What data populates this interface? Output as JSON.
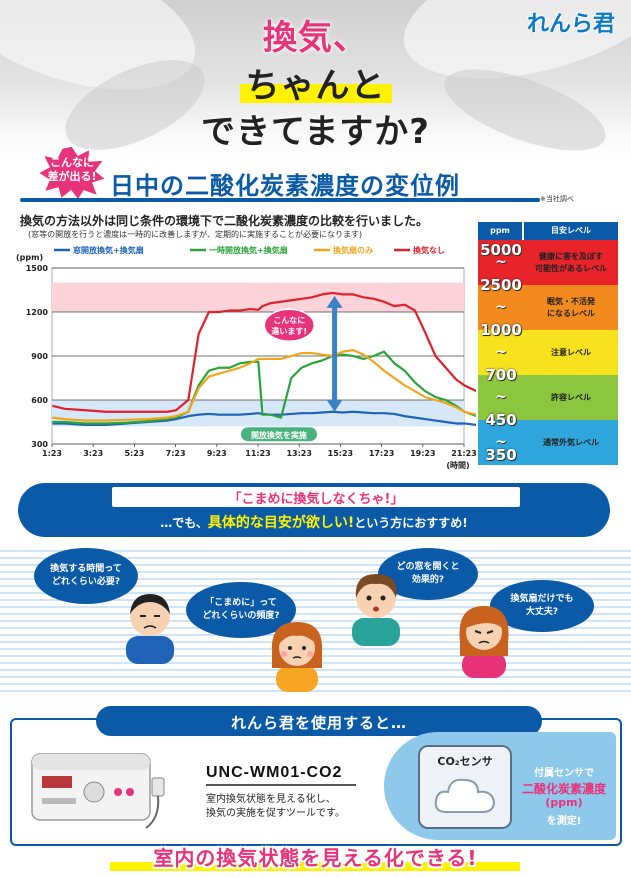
{
  "header": {
    "brand_logo": "れんら君",
    "title_line1": "換気、",
    "title_line2": "ちゃんと",
    "title_line3": "できてますか?"
  },
  "section": {
    "burst_line1": "こんなに",
    "burst_line2": "差が出る!",
    "title": "日中の二酸化炭素濃度の変位例",
    "source_note": "※当社調べ",
    "description": "換気の方法以外は同じ条件の環境下で二酸化炭素濃度の比較を行いました。",
    "description_note": "(窓等の開放を行うと濃度は一時的に改善しますが、定期的に実施することが必要になります)"
  },
  "chart_data": {
    "type": "line",
    "ylabel": "(ppm)",
    "xlabel": "(時間)",
    "ylim": [
      300,
      1500
    ],
    "yticks": [
      300,
      600,
      900,
      1200,
      1500
    ],
    "categories": [
      "1:23",
      "3:23",
      "5:23",
      "7:23",
      "9:23",
      "11:23",
      "13:23",
      "15:23",
      "17:23",
      "19:23",
      "21:23"
    ],
    "x": [
      1.4,
      2,
      3,
      4,
      5,
      6,
      7,
      7.4,
      8,
      8.5,
      9,
      9.5,
      10,
      10.5,
      11,
      11.4,
      11.6,
      12,
      12.5,
      13,
      13.5,
      14,
      14.5,
      15,
      15.5,
      16,
      16.5,
      17,
      17.5,
      18,
      18.5,
      19,
      19.5,
      20,
      20.5,
      21,
      21.4,
      22
    ],
    "series": [
      {
        "name": "窓開放換気+換気扇",
        "color": "#1e63b8",
        "values": [
          440,
          440,
          430,
          430,
          440,
          450,
          460,
          470,
          490,
          500,
          505,
          500,
          500,
          500,
          505,
          510,
          505,
          500,
          500,
          505,
          510,
          510,
          515,
          520,
          515,
          520,
          515,
          510,
          510,
          505,
          490,
          480,
          470,
          460,
          450,
          440,
          440,
          430
        ]
      },
      {
        "name": "一時開放換気+換気扇",
        "color": "#2aa33a",
        "values": [
          450,
          450,
          440,
          440,
          445,
          455,
          470,
          480,
          520,
          700,
          800,
          820,
          820,
          850,
          860,
          860,
          500,
          500,
          480,
          750,
          820,
          850,
          870,
          900,
          910,
          900,
          880,
          900,
          930,
          850,
          800,
          720,
          660,
          620,
          600,
          560,
          520,
          490
        ]
      },
      {
        "name": "換気扇のみ",
        "color": "#f0a51e",
        "values": [
          480,
          470,
          460,
          460,
          465,
          470,
          480,
          490,
          520,
          680,
          760,
          780,
          800,
          820,
          850,
          880,
          880,
          880,
          880,
          900,
          920,
          920,
          910,
          900,
          930,
          940,
          910,
          860,
          800,
          750,
          700,
          660,
          620,
          600,
          580,
          550,
          520,
          500
        ]
      },
      {
        "name": "換気なし",
        "color": "#e0202a",
        "values": [
          560,
          540,
          530,
          520,
          520,
          520,
          520,
          530,
          600,
          1050,
          1200,
          1200,
          1210,
          1210,
          1220,
          1215,
          1240,
          1260,
          1270,
          1280,
          1290,
          1300,
          1320,
          1330,
          1320,
          1320,
          1300,
          1290,
          1270,
          1240,
          1250,
          1210,
          1060,
          900,
          820,
          740,
          700,
          660
        ]
      }
    ],
    "shaded_band": [
      1200,
      1400
    ],
    "annotation_open": "開放換気を実施",
    "annotation_diff_line1": "こんなに",
    "annotation_diff_line2": "違います!"
  },
  "level_table": {
    "header_ppm": "ppm",
    "header_level": "目安レベル",
    "ppm_values": [
      "5000",
      "2500",
      "1000",
      "700",
      "450",
      "350"
    ],
    "tilde": "~",
    "levels": [
      {
        "line1": "健康に害を及ぼす",
        "line2": "可能性があるレベル",
        "color": "#e8242a"
      },
      {
        "line1": "眠気・不活発",
        "line2": "になるレベル",
        "color": "#f28a1e"
      },
      {
        "line1": "注意レベル",
        "line2": "",
        "color": "#f8e21e"
      },
      {
        "line1": "許容レベル",
        "line2": "",
        "color": "#8cc63e"
      },
      {
        "line1": "通常外気レベル",
        "line2": "",
        "color": "#2fa6dc"
      }
    ]
  },
  "banner": {
    "quote": "「こまめに換気しなくちゃ!」",
    "line2_prefix": "…でも、",
    "line2_highlight": "具体的な目安が欲しい!",
    "line2_suffix": "という方におすすめ!"
  },
  "bubbles": [
    {
      "line1": "換気する時間って",
      "line2": "どれくらい必要?"
    },
    {
      "line1": "「こまめに」って",
      "line2": "どれくらいの頻度?"
    },
    {
      "line1": "どの窓を開くと",
      "line2": "効果的?"
    },
    {
      "line1": "換気扇だけでも",
      "line2": "大丈夫?"
    }
  ],
  "bottom": {
    "pill": "れんら君を使用すると…",
    "model": "UNC-WM01-CO2",
    "model_desc1": "室内換気状態を見える化し、",
    "model_desc2": "換気の実施を促すツールです。",
    "sensor_label": "CO₂センサ",
    "sensor_text1": "付属センサで",
    "sensor_text2": "二酸化炭素濃度",
    "sensor_text3": "(ppm)",
    "sensor_text4": "を測定!",
    "final_message": "室内の換気状態を見える化できる!"
  }
}
